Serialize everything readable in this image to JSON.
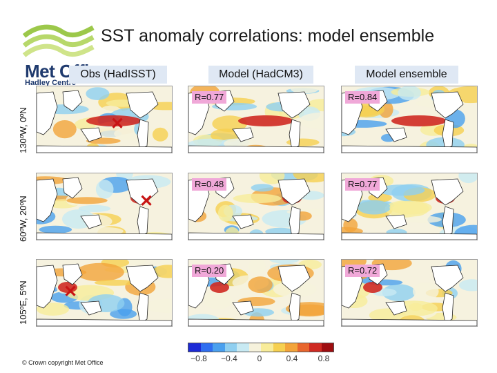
{
  "title": "SST anomaly correlations: model ensemble",
  "logo": {
    "name": "Met Office",
    "sub": "Hadley Centre"
  },
  "columns": [
    "Obs (HadISST)",
    "Model (HadCM3)",
    "Model ensemble"
  ],
  "rows": [
    {
      "label": "130ºW, 0ºN",
      "r_model": "R=0.77",
      "r_ensemble": "R=0.84"
    },
    {
      "label": "60ºW, 20ºN",
      "r_model": "R=0.48",
      "r_ensemble": "R=0.77"
    },
    {
      "label": "105ºE, 5ºN",
      "r_model": "R=0.20",
      "r_ensemble": "R=0.72"
    }
  ],
  "colorbar": {
    "ticks": [
      "−0.8",
      "−0.4",
      "0",
      "0.4",
      "0.8"
    ],
    "colors": [
      "#1d2bd6",
      "#2f6ef0",
      "#4aa0ee",
      "#8fcff0",
      "#c8eaf3",
      "#f6f2dc",
      "#f8ec9a",
      "#f6d050",
      "#f3a43a",
      "#e8662e",
      "#cf2a22",
      "#9e0d10"
    ]
  },
  "copyright": "© Crown copyright   Met Office",
  "marker": "✕"
}
